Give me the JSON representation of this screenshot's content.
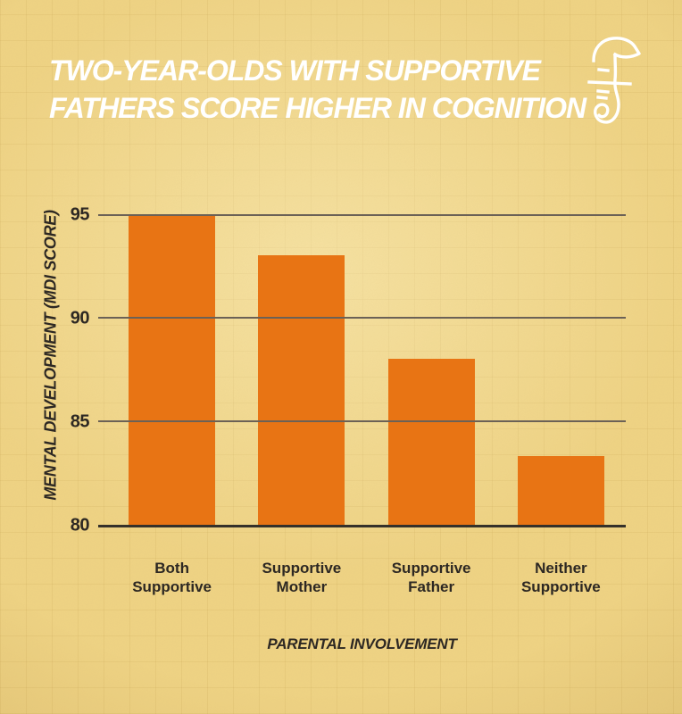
{
  "title": {
    "line1": "TWO-YEAR-OLDS WITH SUPPORTIVE",
    "line2": "FATHERS SCORE HIGHER IN COGNITION"
  },
  "logo": "seahorse-icon",
  "chart_data": {
    "type": "bar",
    "title": "TWO-YEAR-OLDS WITH SUPPORTIVE FATHERS SCORE HIGHER IN COGNITION",
    "categories": [
      "Both Supportive",
      "Supportive Mother",
      "Supportive Father",
      "Neither Supportive"
    ],
    "values": [
      95,
      93,
      88,
      83.3
    ],
    "xlabel": "PARENTAL INVOLVEMENT",
    "ylabel": "MENTAL DEVELOPMENT (MDI SCORE)",
    "ylim": [
      80,
      95
    ],
    "yticks": [
      95,
      90,
      85,
      80
    ],
    "grid": true,
    "legend": false
  },
  "colors": {
    "background": "#EFD384",
    "bar": "#E87414",
    "grid_line": "#6B6156",
    "axis_line": "#35312A",
    "title_text": "#FFFFFF",
    "label_text": "#2D2823",
    "logo": "#FFFFFF"
  }
}
